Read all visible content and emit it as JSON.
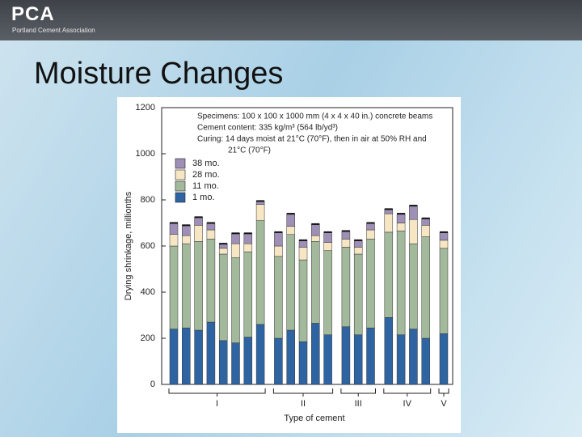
{
  "header": {
    "logo": "PCA",
    "organization": "Portland Cement Association"
  },
  "slide_title": "Moisture Changes",
  "chart_data": {
    "type": "stacked_bar",
    "ylabel": "Drying shrinkage, millionths",
    "xlabel": "Type of cement",
    "annotations": [
      "Specimens: 100 x 100 x 1000 mm (4 x 4 x 40 in.) concrete beams",
      "Cement content: 335 kg/m³ (564 lb/yd³)",
      "Curing: 14 days moist at 21°C (70°F), then in air at 50% RH and",
      "21°C (70°F)"
    ],
    "group_labels": [
      "I",
      "II",
      "III",
      "IV",
      "V"
    ],
    "categories": [
      null,
      null,
      null,
      null,
      null,
      null,
      null,
      null,
      null,
      null,
      null,
      null,
      null,
      null,
      null,
      null,
      null,
      null,
      null,
      null,
      null
    ],
    "series": [
      {
        "name": "1 mo.",
        "color": "#2f64a3",
        "values": [
          240,
          245,
          235,
          270,
          190,
          180,
          205,
          260,
          200,
          235,
          185,
          265,
          215,
          250,
          215,
          245,
          290,
          215,
          240,
          200,
          220
        ]
      },
      {
        "name": "11 mo.",
        "color": "#a3b99c",
        "values": [
          360,
          365,
          385,
          360,
          375,
          370,
          370,
          450,
          355,
          415,
          355,
          355,
          365,
          345,
          350,
          385,
          370,
          450,
          370,
          440,
          370
        ]
      },
      {
        "name": "28 mo.",
        "color": "#f7e6c4",
        "values": [
          50,
          35,
          70,
          40,
          25,
          60,
          35,
          70,
          45,
          35,
          55,
          25,
          35,
          35,
          30,
          40,
          80,
          35,
          105,
          50,
          35
        ]
      },
      {
        "name": "38 mo.",
        "color": "#9d8fb5",
        "values": [
          50,
          45,
          35,
          30,
          20,
          45,
          45,
          15,
          60,
          55,
          30,
          50,
          45,
          35,
          30,
          30,
          20,
          40,
          60,
          30,
          35
        ]
      }
    ],
    "ylim": [
      0,
      1200
    ],
    "yticks": [
      0,
      200,
      400,
      600,
      800,
      1000,
      1200
    ],
    "grid": false
  }
}
